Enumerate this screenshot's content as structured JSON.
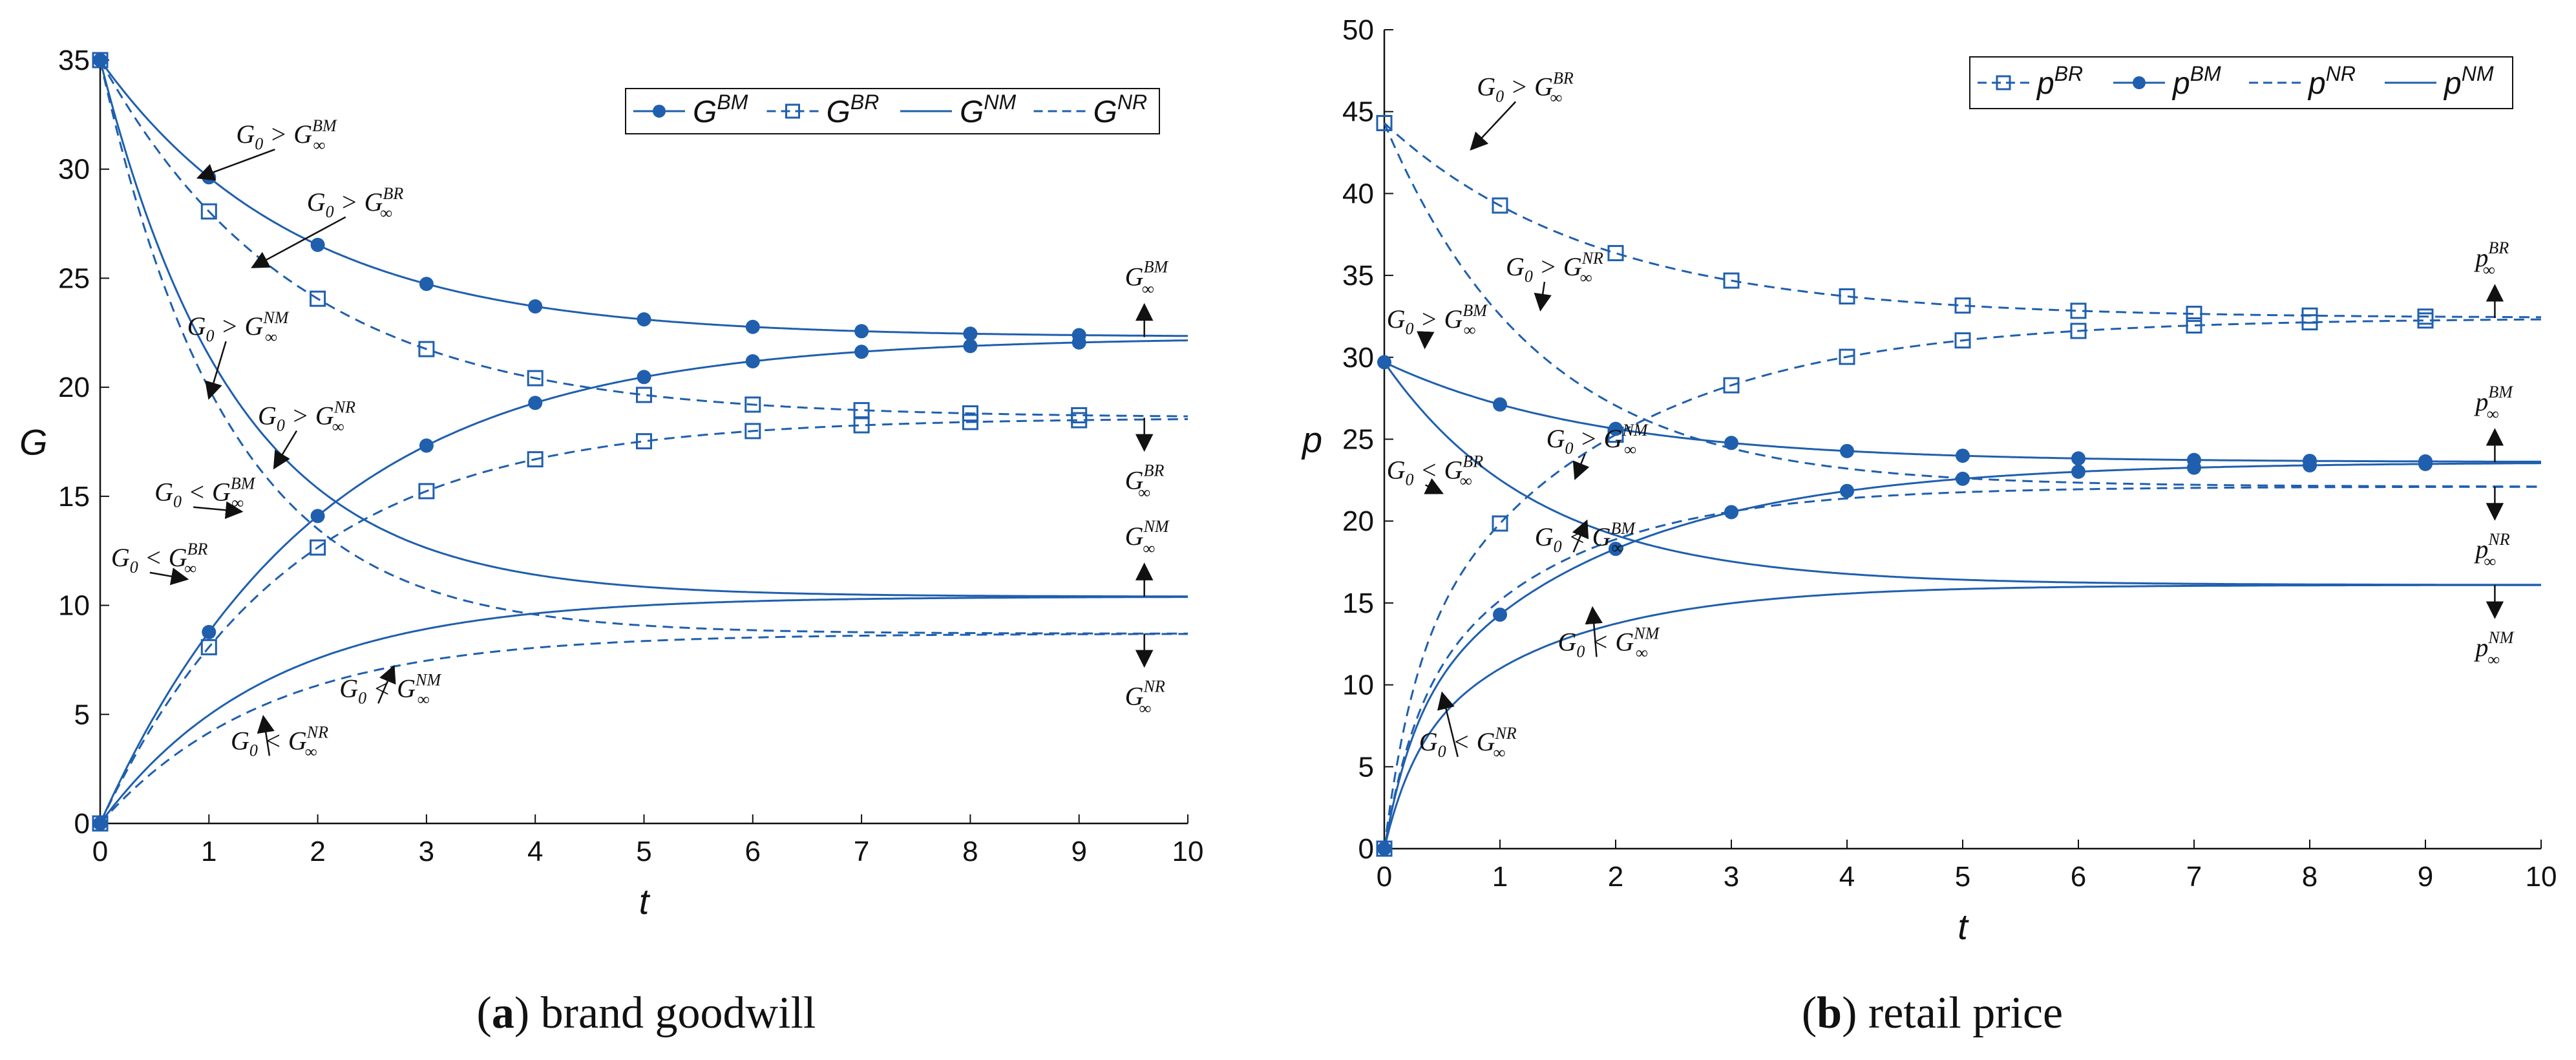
{
  "colors": {
    "series": "#1f5fae",
    "seriesLight": "#2a7bd4",
    "axis": "#111111"
  },
  "captions": {
    "a": {
      "letter": "a",
      "text": "brand goodwill"
    },
    "b": {
      "letter": "b",
      "text": "retail price"
    }
  },
  "chart_data": [
    {
      "id": "a",
      "type": "line",
      "title": "(a) brand goodwill",
      "xlabel": "t",
      "ylabel": "G",
      "xlim": [
        0,
        10
      ],
      "ylim": [
        0,
        35
      ],
      "xticks": [
        0,
        1,
        2,
        3,
        4,
        5,
        6,
        7,
        8,
        9,
        10
      ],
      "yticks": [
        0,
        5,
        10,
        15,
        20,
        25,
        30,
        35
      ],
      "legend_position": "top-right",
      "legend": [
        {
          "name": "G",
          "sup": "BM",
          "style": "solid",
          "marker": "circle"
        },
        {
          "name": "G",
          "sup": "BR",
          "style": "dashed",
          "marker": "square"
        },
        {
          "name": "G",
          "sup": "NM",
          "style": "solid",
          "marker": "none"
        },
        {
          "name": "G",
          "sup": "NR",
          "style": "dashed",
          "marker": "none"
        }
      ],
      "series": [
        {
          "name": "G^BM (G0 > G∞)",
          "style": "solid",
          "marker": "circle",
          "start": 35,
          "inf": 22.3,
          "k": 0.55
        },
        {
          "name": "G^BR (G0 > G∞)",
          "style": "dashed",
          "marker": "square",
          "start": 35,
          "inf": 18.6,
          "k": 0.55
        },
        {
          "name": "G^NM (G0 > G∞)",
          "style": "solid",
          "marker": "none",
          "start": 35,
          "inf": 10.4,
          "k": 0.8
        },
        {
          "name": "G^NR (G0 > G∞)",
          "style": "dashed",
          "marker": "none",
          "start": 35,
          "inf": 8.7,
          "k": 0.85
        },
        {
          "name": "G^BM (G0 < G∞)",
          "style": "solid",
          "marker": "circle",
          "start": 0,
          "inf": 22.3,
          "k": 0.5
        },
        {
          "name": "G^BR (G0 < G∞)",
          "style": "dashed",
          "marker": "square",
          "start": 0,
          "inf": 18.6,
          "k": 0.57
        },
        {
          "name": "G^NM (G0 < G∞)",
          "style": "solid",
          "marker": "none",
          "start": 0,
          "inf": 10.4,
          "k": 0.65
        },
        {
          "name": "G^NR (G0 < G∞)",
          "style": "dashed",
          "marker": "none",
          "start": 0,
          "inf": 8.7,
          "k": 0.65
        }
      ],
      "end_labels": [
        {
          "name": "G",
          "sup": "BM",
          "sub": "∞",
          "value": 22.3,
          "arrow": "up"
        },
        {
          "name": "G",
          "sup": "BR",
          "sub": "∞",
          "value": 18.6,
          "arrow": "down"
        },
        {
          "name": "G",
          "sup": "NM",
          "sub": "∞",
          "value": 10.4,
          "arrow": "up"
        },
        {
          "name": "G",
          "sup": "NR",
          "sub": "∞",
          "value": 8.7,
          "arrow": "down"
        }
      ],
      "annotations": [
        {
          "text": "G",
          "sub": "0",
          "op": ">",
          "rhs": "G",
          "rsup": "BM",
          "rsub": "∞",
          "at": [
            1.25,
            31.2
          ],
          "target": [
            0.9,
            29.6
          ]
        },
        {
          "text": "G",
          "sub": "0",
          "op": ">",
          "rhs": "G",
          "rsup": "BR",
          "rsub": "∞",
          "at": [
            1.9,
            28.1
          ],
          "target": [
            1.4,
            25.5
          ]
        },
        {
          "text": "G",
          "sub": "0",
          "op": ">",
          "rhs": "G",
          "rsup": "NM",
          "rsub": "∞",
          "at": [
            0.8,
            22.4
          ],
          "target": [
            1.0,
            19.5
          ]
        },
        {
          "text": "G",
          "sub": "0",
          "op": ">",
          "rhs": "G",
          "rsup": "NR",
          "rsub": "∞",
          "at": [
            1.45,
            18.3
          ],
          "target": [
            1.6,
            16.3
          ]
        },
        {
          "text": "G",
          "sub": "0",
          "op": "<",
          "rhs": "G",
          "rsup": "BM",
          "rsub": "∞",
          "at": [
            0.5,
            14.8
          ],
          "target": [
            1.3,
            14.3
          ]
        },
        {
          "text": "G",
          "sub": "0",
          "op": "<",
          "rhs": "G",
          "rsup": "BR",
          "rsub": "∞",
          "at": [
            0.1,
            11.8
          ],
          "target": [
            0.8,
            11.2
          ]
        },
        {
          "text": "G",
          "sub": "0",
          "op": "<",
          "rhs": "G",
          "rsup": "NM",
          "rsub": "∞",
          "at": [
            2.2,
            5.8
          ],
          "target": [
            2.7,
            7.2
          ]
        },
        {
          "text": "G",
          "sub": "0",
          "op": "<",
          "rhs": "G",
          "rsup": "NR",
          "rsub": "∞",
          "at": [
            1.2,
            3.4
          ],
          "target": [
            1.5,
            4.9
          ]
        }
      ]
    },
    {
      "id": "b",
      "type": "line",
      "title": "(b) retail price",
      "xlabel": "t",
      "ylabel": "p",
      "xlim": [
        0,
        10
      ],
      "ylim": [
        0,
        50
      ],
      "xticks": [
        0,
        1,
        2,
        3,
        4,
        5,
        6,
        7,
        8,
        9,
        10
      ],
      "yticks": [
        0,
        5,
        10,
        15,
        20,
        25,
        30,
        35,
        40,
        45,
        50
      ],
      "legend_position": "top-right",
      "legend": [
        {
          "name": "p",
          "sup": "BR",
          "style": "dashed",
          "marker": "square"
        },
        {
          "name": "p",
          "sup": "BM",
          "style": "solid",
          "marker": "circle"
        },
        {
          "name": "p",
          "sup": "NR",
          "style": "dashed",
          "marker": "none"
        },
        {
          "name": "p",
          "sup": "NM",
          "style": "solid",
          "marker": "none"
        }
      ],
      "series": [
        {
          "name": "p^BR (G0 > G∞)",
          "style": "dashed",
          "marker": "square",
          "start": 44.3,
          "inf": 32.4,
          "k": 0.55
        },
        {
          "name": "p^BM (G0 > G∞)",
          "style": "solid",
          "marker": "circle",
          "start": 29.7,
          "inf": 23.6,
          "k": 0.55
        },
        {
          "name": "p^NR (G0 > G∞)",
          "style": "dashed",
          "marker": "none",
          "start": 44.3,
          "inf": 22.1,
          "k": 0.75
        },
        {
          "name": "p^NM (G0 > G∞)",
          "style": "solid",
          "marker": "none",
          "start": 29.7,
          "inf": 16.1,
          "k": 0.75
        },
        {
          "name": "p^BR (G0 < G∞)",
          "style": "dashed",
          "marker": "square",
          "start": 0,
          "inf": 32.4,
          "k": 0.55,
          "kick": 20
        },
        {
          "name": "p^BM (G0 < G∞)",
          "style": "solid",
          "marker": "circle",
          "start": 0,
          "inf": 23.6,
          "k": 0.55,
          "kick": 14
        },
        {
          "name": "p^NR (G0 < G∞)",
          "style": "dashed",
          "marker": "none",
          "start": 0,
          "inf": 22.1,
          "k": 0.75,
          "kick": 14
        },
        {
          "name": "p^NM (G0 < G∞)",
          "style": "solid",
          "marker": "none",
          "start": 0,
          "inf": 16.1,
          "k": 0.75,
          "kick": 10
        }
      ],
      "end_labels": [
        {
          "name": "p",
          "sup": "BR",
          "sub": "∞",
          "value": 32.4,
          "arrow": "up"
        },
        {
          "name": "p",
          "sup": "BM",
          "sub": "∞",
          "value": 23.6,
          "arrow": "up"
        },
        {
          "name": "p",
          "sup": "NR",
          "sub": "∞",
          "value": 22.1,
          "arrow": "down"
        },
        {
          "name": "p",
          "sup": "NM",
          "sub": "∞",
          "value": 16.1,
          "arrow": "down"
        }
      ],
      "annotations": [
        {
          "text": "G",
          "sub": "0",
          "op": ">",
          "rhs": "G",
          "rsup": "BR",
          "rsub": "∞",
          "at": [
            0.8,
            46.0
          ],
          "target": [
            0.75,
            42.7
          ]
        },
        {
          "text": "G",
          "sub": "0",
          "op": ">",
          "rhs": "G",
          "rsup": "NR",
          "rsub": "∞",
          "at": [
            1.05,
            35.0
          ],
          "target": [
            1.35,
            32.9
          ]
        },
        {
          "text": "G",
          "sub": "0",
          "op": ">",
          "rhs": "G",
          "rsup": "BM",
          "rsub": "∞",
          "at": [
            0.02,
            31.8
          ],
          "target": [
            0.35,
            30.6
          ]
        },
        {
          "text": "G",
          "sub": "0",
          "op": ">",
          "rhs": "G",
          "rsup": "NM",
          "rsub": "∞",
          "at": [
            1.4,
            24.5
          ],
          "target": [
            1.65,
            22.6
          ]
        },
        {
          "text": "G",
          "sub": "0",
          "op": "<",
          "rhs": "G",
          "rsup": "BR",
          "rsub": "∞",
          "at": [
            0.02,
            22.6
          ],
          "target": [
            0.5,
            21.7
          ]
        },
        {
          "text": "G",
          "sub": "0",
          "op": "<",
          "rhs": "G",
          "rsup": "BM",
          "rsub": "∞",
          "at": [
            1.3,
            18.5
          ],
          "target": [
            1.75,
            20.0
          ]
        },
        {
          "text": "G",
          "sub": "0",
          "op": "<",
          "rhs": "G",
          "rsup": "NM",
          "rsub": "∞",
          "at": [
            1.5,
            12.1
          ],
          "target": [
            1.8,
            14.7
          ]
        },
        {
          "text": "G",
          "sub": "0",
          "op": "<",
          "rhs": "G",
          "rsup": "NR",
          "rsub": "∞",
          "at": [
            0.3,
            6.0
          ],
          "target": [
            0.5,
            9.5
          ]
        }
      ]
    }
  ]
}
